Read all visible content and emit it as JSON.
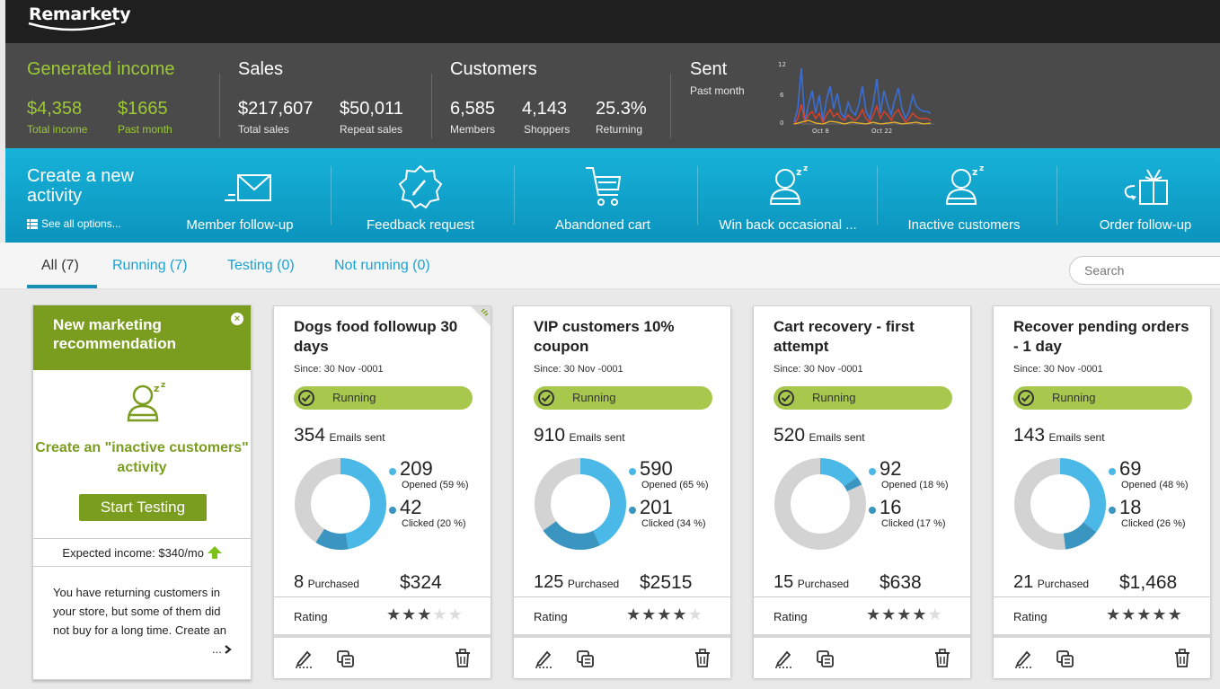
{
  "app": {
    "logo": "Remarkety"
  },
  "stats": {
    "generated_income": {
      "title": "Generated income",
      "total": "$4,358",
      "total_label": "Total income",
      "past": "$1665",
      "past_label": "Past month"
    },
    "sales": {
      "title": "Sales",
      "total": "$217,607",
      "total_label": "Total sales",
      "repeat": "$50,011",
      "repeat_label": "Repeat sales"
    },
    "customers": {
      "title": "Customers",
      "members": "6,585",
      "members_label": "Members",
      "shoppers": "4,143",
      "shoppers_label": "Shoppers",
      "returning": "25.3%",
      "returning_label": "Returning"
    },
    "sent": {
      "title": "Sent",
      "subtitle": "Past month",
      "y_ticks": [
        "12",
        "6",
        "0"
      ],
      "x_ticks": [
        "Oct 8",
        "Oct 22"
      ]
    }
  },
  "create": {
    "title": "Create a new activity",
    "see_all": "See all options...",
    "items": [
      {
        "label": "Member follow-up",
        "icon": "envelope-icon"
      },
      {
        "label": "Feedback request",
        "icon": "feedback-badge-icon"
      },
      {
        "label": "Abandoned cart",
        "icon": "cart-icon"
      },
      {
        "label": "Win back occasional ...",
        "icon": "sleeping-user-icon"
      },
      {
        "label": "Inactive customers",
        "icon": "sleeping-user-icon"
      },
      {
        "label": "Order follow-up",
        "icon": "gift-icon"
      }
    ]
  },
  "tabs": [
    {
      "label": "All (7)"
    },
    {
      "label": "Running (7)"
    },
    {
      "label": "Testing (0)"
    },
    {
      "label": "Not running (0)"
    }
  ],
  "search": {
    "placeholder": "Search"
  },
  "recommendation": {
    "header": "New marketing recommendation",
    "close": "×",
    "headline": "Create an \"inactive customers\" activity",
    "button": "Start Testing",
    "expected": "Expected income: $340/mo",
    "description": "You have returning customers in your store, but some of them did not buy for a long time. Create an",
    "more": "...",
    "accent": "#7a9d1f"
  },
  "activities": [
    {
      "title": "Dogs food followup 30 days",
      "since": "Since: 30 Nov -0001",
      "status": "Running",
      "emails_sent": "354",
      "emails_label": "Emails sent",
      "opened": "209",
      "opened_label": "Opened (59 %)",
      "clicked": "42",
      "clicked_label": "Clicked (20 %)",
      "opened_pct": 59,
      "clicked_pct": 20,
      "purchased": "8",
      "purchased_label": "Purchased",
      "revenue": "$324",
      "rating_label": "Rating",
      "rating": 3
    },
    {
      "title": "VIP customers 10% coupon",
      "since": "Since: 30 Nov -0001",
      "status": "Running",
      "emails_sent": "910",
      "emails_label": "Emails sent",
      "opened": "590",
      "opened_label": "Opened (65 %)",
      "clicked": "201",
      "clicked_label": "Clicked (34 %)",
      "opened_pct": 65,
      "clicked_pct": 34,
      "purchased": "125",
      "purchased_label": "Purchased",
      "revenue": "$2515",
      "rating_label": "Rating",
      "rating": 4
    },
    {
      "title": "Cart recovery - first attempt",
      "since": "Since: 30 Nov -0001",
      "status": "Running",
      "emails_sent": "520",
      "emails_label": "Emails sent",
      "opened": "92",
      "opened_label": "Opened (18 %)",
      "clicked": "16",
      "clicked_label": "Clicked (17 %)",
      "opened_pct": 18,
      "clicked_pct": 17,
      "purchased": "15",
      "purchased_label": "Purchased",
      "revenue": "$638",
      "rating_label": "Rating",
      "rating": 4
    },
    {
      "title": "Recover pending orders - 1 day",
      "since": "Since: 30 Nov -0001",
      "status": "Running",
      "emails_sent": "143",
      "emails_label": "Emails sent",
      "opened": "69",
      "opened_label": "Opened (48 %)",
      "clicked": "18",
      "clicked_label": "Clicked (26 %)",
      "opened_pct": 48,
      "clicked_pct": 26,
      "purchased": "21",
      "purchased_label": "Purchased",
      "revenue": "$1,468",
      "rating_label": "Rating",
      "rating": 5
    }
  ],
  "colors": {
    "opened": "#4ab9e8",
    "clicked": "#3a95c0",
    "rest": "#d3d3d3",
    "status": "#a7c84c",
    "bar": "#0ea3cc"
  }
}
